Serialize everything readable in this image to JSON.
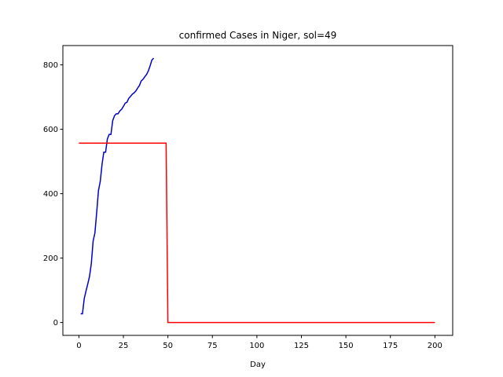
{
  "chart_data": {
    "type": "line",
    "title": "confirmed Cases in Niger, sol=49",
    "xlabel": "Day",
    "ylabel": "",
    "xlim": [
      -9,
      210
    ],
    "ylim": [
      -40,
      860
    ],
    "xticks": [
      0,
      25,
      50,
      75,
      100,
      125,
      150,
      175,
      200
    ],
    "yticks": [
      0,
      200,
      400,
      600,
      800
    ],
    "grid": false,
    "series": [
      {
        "color": "#0000cc",
        "x": [
          1,
          2,
          3,
          4,
          5,
          6,
          7,
          8,
          9,
          10,
          11,
          12,
          13,
          14,
          15,
          16,
          17,
          18,
          19,
          20,
          21,
          22,
          23,
          24,
          25,
          26,
          27,
          28,
          29,
          30,
          31,
          32,
          33,
          34,
          35,
          36,
          37,
          38,
          39,
          40,
          41,
          42
        ],
        "y": [
          27,
          27,
          74,
          98,
          120,
          144,
          184,
          253,
          278,
          342,
          410,
          438,
          491,
          529,
          529,
          570,
          584,
          584,
          627,
          642,
          648,
          648,
          657,
          662,
          671,
          681,
          684,
          696,
          702,
          709,
          713,
          719,
          728,
          736,
          750,
          755,
          763,
          770,
          781,
          797,
          815,
          821
        ]
      },
      {
        "color": "#ff0000",
        "x": [
          0,
          49,
          50,
          200
        ],
        "y": [
          557,
          557,
          0,
          0
        ]
      }
    ]
  }
}
